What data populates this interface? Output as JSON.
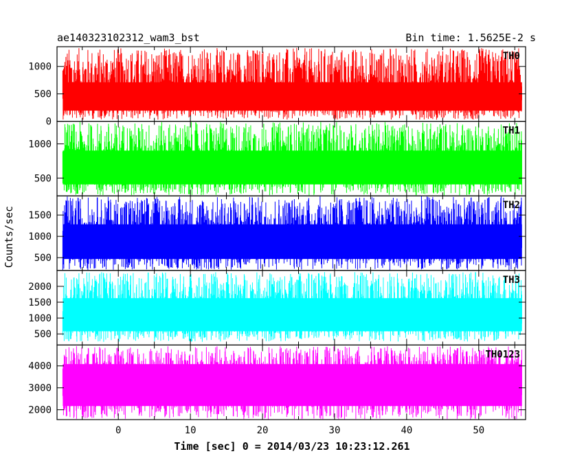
{
  "header": {
    "title": "ae140323102312_wam3_bst",
    "bin_time": "Bin time: 1.5625E-2 s"
  },
  "chart_data": {
    "type": "line",
    "xlabel": "Time [sec] 0 = 2014/03/23 10:23:12.261",
    "ylabel": "Counts/sec",
    "xlim": [
      -8.5,
      56.5
    ],
    "x_ticks": [
      0,
      10,
      20,
      30,
      40,
      50
    ],
    "x_range_data": [
      -7.7,
      56
    ],
    "series": [
      {
        "name": "TH0",
        "color": "#ff0000",
        "ylim": [
          0,
          1360
        ],
        "y_ticks": [
          0,
          500,
          1000
        ],
        "min_level": 30,
        "mean": 500,
        "max_level": 1340
      },
      {
        "name": "TH1",
        "color": "#00ff00",
        "ylim": [
          240,
          1330
        ],
        "y_ticks": [
          500,
          1000
        ],
        "min_level": 250,
        "mean": 700,
        "max_level": 1320
      },
      {
        "name": "TH2",
        "color": "#0000ff",
        "ylim": [
          200,
          1950
        ],
        "y_ticks": [
          500,
          1000,
          1500
        ],
        "min_level": 210,
        "mean": 950,
        "max_level": 1940
      },
      {
        "name": "TH3",
        "color": "#00ffff",
        "ylim": [
          150,
          2500
        ],
        "y_ticks": [
          500,
          1000,
          1500,
          2000
        ],
        "min_level": 250,
        "mean": 1200,
        "max_level": 2450
      },
      {
        "name": "TH0123",
        "color": "#ff00ff",
        "ylim": [
          1550,
          4950
        ],
        "y_ticks": [
          2000,
          3000,
          4000
        ],
        "min_level": 1560,
        "mean": 3300,
        "max_level": 4900
      }
    ]
  }
}
